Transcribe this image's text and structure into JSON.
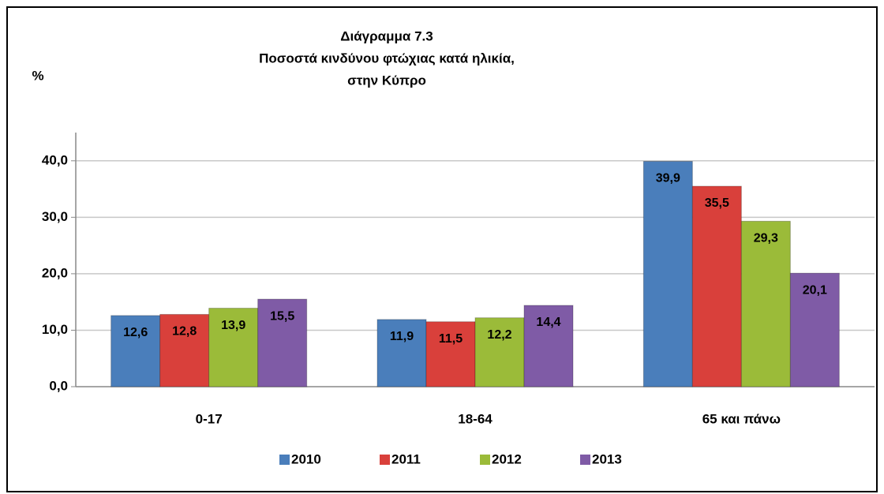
{
  "chart_data": {
    "type": "bar",
    "title": [
      "Διάγραμμα 7.3",
      "Ποσοστά κινδύνου φτώχιας κατά ηλικία,",
      "στην Κύπρο"
    ],
    "y_label": "%",
    "categories": [
      "0-17",
      "18-64",
      "65 και πάνω"
    ],
    "series": [
      {
        "name": "2010",
        "color": "#4a7ebb",
        "values": [
          12.6,
          11.9,
          39.9
        ],
        "value_labels": [
          "12,6",
          "11,9",
          "39,9"
        ]
      },
      {
        "name": "2011",
        "color": "#d9403b",
        "values": [
          12.8,
          11.5,
          35.5
        ],
        "value_labels": [
          "12,8",
          "11,5",
          "35,5"
        ]
      },
      {
        "name": "2012",
        "color": "#9bbb39",
        "values": [
          13.9,
          12.2,
          29.3
        ],
        "value_labels": [
          "13,9",
          "12,2",
          "29,3"
        ]
      },
      {
        "name": "2013",
        "color": "#7f5ba6",
        "values": [
          15.5,
          14.4,
          20.1
        ],
        "value_labels": [
          "15,5",
          "14,4",
          "20,1"
        ]
      }
    ],
    "ylim": [
      0,
      45
    ],
    "yticks": [
      {
        "value": 0,
        "label": "0,0"
      },
      {
        "value": 10,
        "label": "10,0"
      },
      {
        "value": 20,
        "label": "20,0"
      },
      {
        "value": 30,
        "label": "30,0"
      },
      {
        "value": 40,
        "label": "40,0"
      }
    ],
    "grid": true,
    "legend": "bottom"
  }
}
